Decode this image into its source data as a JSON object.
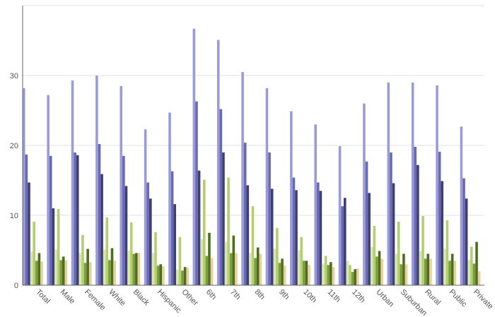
{
  "chart_data": {
    "type": "bar",
    "title": "",
    "xlabel": "",
    "ylabel": "",
    "ylim": [
      0,
      40
    ],
    "yticks": [
      0,
      10,
      20,
      30
    ],
    "grid": true,
    "categories": [
      "Total",
      "Male",
      "Female",
      "White",
      "Black",
      "Hispanic",
      "Other",
      "6th",
      "7th",
      "8th",
      "9th",
      "10th",
      "11th",
      "12th",
      "Urban",
      "Suburban",
      "Rural",
      "Public",
      "Private"
    ],
    "series": [
      {
        "color": "#9b9bd9",
        "values": [
          28.2,
          27.2,
          29.3,
          30.0,
          28.5,
          22.3,
          24.7,
          36.7,
          35.1,
          30.5,
          28.2,
          24.9,
          23.0,
          19.9,
          26.0,
          29.0,
          29.0,
          28.6,
          22.7
        ]
      },
      {
        "color": "#6969b3",
        "values": [
          18.7,
          18.5,
          19.0,
          20.2,
          18.5,
          14.7,
          16.3,
          26.3,
          25.2,
          20.4,
          19.0,
          15.4,
          14.7,
          11.3,
          17.7,
          19.0,
          19.8,
          19.1,
          15.3
        ]
      },
      {
        "color": "#3f3f78",
        "values": [
          14.7,
          11.0,
          18.6,
          15.9,
          14.2,
          12.4,
          11.6,
          16.4,
          19.0,
          14.3,
          13.8,
          13.6,
          13.5,
          12.5,
          13.2,
          14.6,
          17.2,
          14.9,
          12.4
        ]
      },
      {
        "color": "#d9e6b0",
        "values": [
          4.8,
          5.1,
          4.6,
          5.1,
          4.9,
          4.6,
          2.2,
          6.6,
          6.2,
          4.6,
          5.2,
          5.0,
          3.1,
          3.5,
          5.5,
          4.5,
          4.9,
          5.2,
          3.6
        ]
      },
      {
        "color": "#b3cf6f",
        "values": [
          9.1,
          10.9,
          7.2,
          9.7,
          9.0,
          7.6,
          6.9,
          15.1,
          15.4,
          11.3,
          8.2,
          6.9,
          4.2,
          2.9,
          8.5,
          9.1,
          9.9,
          9.3,
          5.5
        ]
      },
      {
        "color": "#7a9e3b",
        "values": [
          3.5,
          3.6,
          3.2,
          3.6,
          4.5,
          2.8,
          2.1,
          4.2,
          4.6,
          3.9,
          3.2,
          3.5,
          2.9,
          1.9,
          4.1,
          3.0,
          3.8,
          3.5,
          3.1
        ]
      },
      {
        "color": "#4d6e1e",
        "values": [
          4.6,
          4.1,
          5.2,
          5.3,
          4.6,
          3.0,
          2.6,
          7.5,
          7.1,
          5.4,
          3.8,
          3.5,
          3.3,
          2.3,
          4.9,
          4.5,
          4.5,
          4.5,
          6.2
        ]
      },
      {
        "color": "#e8cf9c",
        "values": [
          3.4,
          3.6,
          3.3,
          3.5,
          4.6,
          2.7,
          2.5,
          3.9,
          4.6,
          4.5,
          2.8,
          2.9,
          2.6,
          2.4,
          3.8,
          3.0,
          3.8,
          3.5,
          2.0
        ]
      }
    ]
  }
}
